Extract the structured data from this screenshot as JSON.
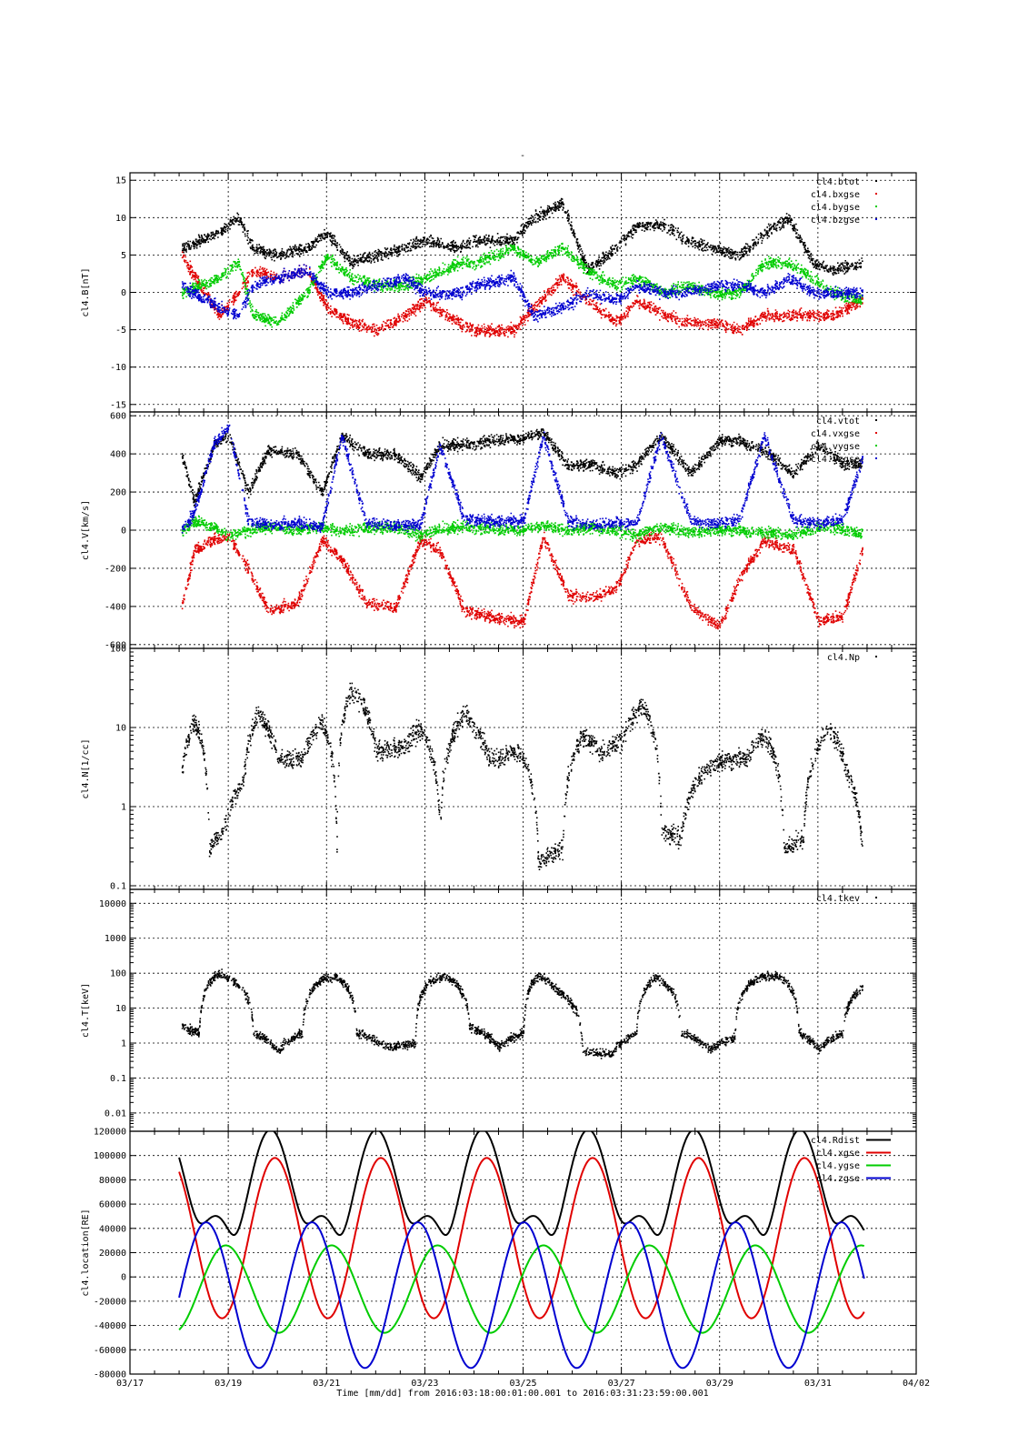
{
  "title": "-",
  "footer": "Time [mm/dd]  from 2016:03:18:00:01:00.001  to  2016:03:31:23:59:00.001",
  "colors": {
    "black": "#000000",
    "red": "#e00000",
    "green": "#00cc00",
    "blue": "#0000d0"
  },
  "chart_data": [
    {
      "type": "scatter",
      "ylabel": "cl4.B[nT]",
      "ylim": [
        -16,
        16
      ],
      "yscale": "linear",
      "yticks": [
        15,
        10,
        5,
        0,
        -5,
        -10,
        -15
      ],
      "grid": true,
      "legend_position": "top-right",
      "series": [
        {
          "name": "cl4.btot",
          "color": "black"
        },
        {
          "name": "cl4.bxgse",
          "color": "red"
        },
        {
          "name": "cl4.bygse",
          "color": "green"
        },
        {
          "name": "cl4.bzgse",
          "color": "blue"
        }
      ],
      "profile_days": [
        18.05,
        18.8,
        19.2,
        19.5,
        20.0,
        20.6,
        21.0,
        21.5,
        22.0,
        22.6,
        23.0,
        23.7,
        24.0,
        24.8,
        25.2,
        25.8,
        26.3,
        26.9,
        27.3,
        27.9,
        28.3,
        28.9,
        29.4,
        29.9,
        30.4,
        30.9,
        31.3,
        31.9
      ],
      "profile_values": {
        "cl4.btot": [
          6,
          8,
          10,
          6,
          5,
          6,
          8,
          4,
          5,
          6,
          7,
          6,
          7,
          7,
          10,
          12,
          3,
          6,
          9,
          9,
          7,
          6,
          5,
          8,
          10,
          4,
          3,
          4
        ],
        "cl4.bxgse": [
          5,
          -3,
          0,
          3,
          2,
          3,
          -2,
          -4,
          -5,
          -3,
          -1,
          -4,
          -5,
          -5,
          -2,
          2,
          -1,
          -4,
          -1,
          -3,
          -4,
          -4,
          -5,
          -3,
          -3,
          -3,
          -3,
          -1
        ],
        "cl4.bygse": [
          0,
          2,
          4,
          -3,
          -4,
          0,
          5,
          2,
          1,
          1,
          2,
          4,
          4,
          6,
          4,
          6,
          3,
          1,
          2,
          0,
          1,
          0,
          0,
          4,
          4,
          2,
          0,
          -1
        ],
        "cl4.bzgse": [
          1,
          -2,
          -3,
          1,
          2,
          3,
          0,
          0,
          1,
          2,
          0,
          0,
          1,
          2,
          -3,
          -2,
          0,
          -1,
          1,
          0,
          0,
          1,
          1,
          0,
          2,
          0,
          0,
          0
        ]
      }
    },
    {
      "type": "scatter",
      "ylabel": "cl4.V[km/s]",
      "ylim": [
        -620,
        620
      ],
      "yscale": "linear",
      "yticks": [
        600,
        400,
        200,
        0,
        -200,
        -400,
        -600
      ],
      "grid": true,
      "legend_position": "top-right",
      "series": [
        {
          "name": "cl4.vtot",
          "color": "black"
        },
        {
          "name": "cl4.vxgse",
          "color": "red"
        },
        {
          "name": "cl4.vygse",
          "color": "green"
        },
        {
          "name": "cl4.vzgse",
          "color": "blue"
        }
      ],
      "profile_days": [
        18.05,
        18.3,
        18.7,
        19.0,
        19.4,
        19.8,
        20.4,
        20.9,
        21.3,
        21.8,
        22.4,
        22.9,
        23.3,
        23.8,
        24.5,
        25.0,
        25.4,
        25.9,
        26.4,
        26.9,
        27.3,
        27.8,
        28.4,
        29.0,
        29.4,
        29.9,
        30.5,
        31.0,
        31.5,
        31.9
      ],
      "profile_values": {
        "cl4.vtot": [
          400,
          150,
          450,
          500,
          200,
          420,
          400,
          200,
          500,
          400,
          400,
          280,
          450,
          450,
          480,
          480,
          520,
          340,
          350,
          300,
          350,
          500,
          300,
          480,
          470,
          420,
          300,
          450,
          350,
          350
        ],
        "cl4.vxgse": [
          -400,
          -100,
          -50,
          -30,
          -200,
          -420,
          -380,
          -50,
          -150,
          -380,
          -400,
          -50,
          -100,
          -420,
          -460,
          -480,
          -30,
          -340,
          -350,
          -300,
          -50,
          -30,
          -400,
          -500,
          -250,
          -50,
          -100,
          -470,
          -450,
          -100
        ],
        "cl4.vygse": [
          0,
          50,
          20,
          -30,
          0,
          20,
          0,
          20,
          0,
          10,
          20,
          -20,
          10,
          20,
          10,
          0,
          30,
          0,
          20,
          0,
          -20,
          20,
          -10,
          10,
          0,
          -10,
          -20,
          20,
          10,
          -20
        ],
        "cl4.vzgse": [
          0,
          100,
          450,
          550,
          50,
          30,
          40,
          20,
          500,
          40,
          30,
          30,
          450,
          60,
          50,
          50,
          500,
          50,
          30,
          40,
          40,
          500,
          50,
          40,
          60,
          500,
          50,
          40,
          60,
          380
        ]
      }
    },
    {
      "type": "scatter",
      "ylabel": "cl4.N[1/cc]",
      "ylim": [
        0.09,
        100
      ],
      "yscale": "log",
      "yticks": [
        100,
        10,
        1,
        0.1
      ],
      "grid": true,
      "legend_position": "top-right",
      "series": [
        {
          "name": "cl4.Np",
          "color": "black"
        }
      ],
      "profile_days": [
        18.05,
        18.3,
        18.6,
        18.9,
        19.3,
        19.6,
        20.0,
        20.5,
        20.9,
        21.2,
        21.5,
        22.0,
        22.6,
        22.9,
        23.3,
        23.8,
        24.3,
        24.9,
        25.3,
        25.8,
        26.2,
        26.6,
        27.0,
        27.4,
        27.8,
        28.2,
        28.7,
        29.0,
        29.5,
        29.9,
        30.3,
        30.7,
        31.2,
        31.6,
        31.9
      ],
      "profile_values": {
        "cl4.Np": [
          3,
          12,
          0.3,
          0.5,
          2,
          15,
          4,
          4,
          12,
          0.2,
          30,
          5,
          6,
          10,
          0.4,
          15,
          4,
          5,
          0.2,
          0.3,
          8,
          5,
          7,
          20,
          0.5,
          0.4,
          3,
          4,
          4,
          8,
          0.3,
          0.4,
          10,
          2.5,
          0.2
        ]
      }
    },
    {
      "type": "scatter",
      "ylabel": "cl4.T[keV]",
      "ylim": [
        0.003,
        25000
      ],
      "yscale": "log",
      "yticks": [
        10000,
        1000,
        100,
        10,
        1,
        0.1,
        0.01
      ],
      "grid": true,
      "legend_position": "top-right",
      "series": [
        {
          "name": "cl4.tkev",
          "color": "black"
        }
      ],
      "profile_days": [
        18.05,
        18.4,
        18.8,
        19.1,
        19.5,
        20.0,
        20.5,
        20.9,
        21.2,
        21.6,
        22.2,
        22.8,
        23.1,
        23.4,
        23.9,
        24.5,
        25.0,
        25.3,
        25.7,
        26.2,
        26.8,
        27.3,
        27.7,
        28.2,
        28.8,
        29.3,
        29.8,
        30.2,
        30.6,
        31.0,
        31.5,
        31.9
      ],
      "profile_values": {
        "cl4.tkev": [
          3,
          2,
          100,
          60,
          2,
          0.6,
          2,
          70,
          80,
          2,
          0.8,
          1,
          60,
          90,
          3,
          0.8,
          2,
          90,
          30,
          0.6,
          0.5,
          2,
          80,
          2,
          0.7,
          1.5,
          80,
          90,
          2,
          0.7,
          2,
          40
        ]
      }
    },
    {
      "type": "line",
      "ylabel": "cl4.location[RE]",
      "ylim": [
        -80000,
        120000
      ],
      "yscale": "linear",
      "yticks": [
        120000,
        100000,
        80000,
        60000,
        40000,
        20000,
        0,
        -20000,
        -40000,
        -60000,
        -80000
      ],
      "xlabel": "Time [mm/dd]",
      "xlim": [
        17,
        33
      ],
      "xticks": [
        "03/17",
        "03/19",
        "03/21",
        "03/23",
        "03/25",
        "03/27",
        "03/29",
        "03/31",
        "04/02"
      ],
      "grid": true,
      "legend_position": "top-right",
      "series": [
        {
          "name": "cl4.Rdist",
          "color": "black"
        },
        {
          "name": "cl4.xgse",
          "color": "red"
        },
        {
          "name": "cl4.ygse",
          "color": "green"
        },
        {
          "name": "cl4.zgse",
          "color": "blue"
        }
      ],
      "orbit": {
        "start_day": 18.0,
        "end_day": 31.95,
        "period_days": 2.155,
        "x": {
          "offset": 32000,
          "amplitude": 66000,
          "peak_day": 19.95
        },
        "y": {
          "offset": -10000,
          "amplitude": 36000,
          "peak_day": 18.95
        },
        "z": {
          "offset": -15000,
          "amplitude": 60000,
          "peak_day": 18.55
        }
      }
    }
  ]
}
